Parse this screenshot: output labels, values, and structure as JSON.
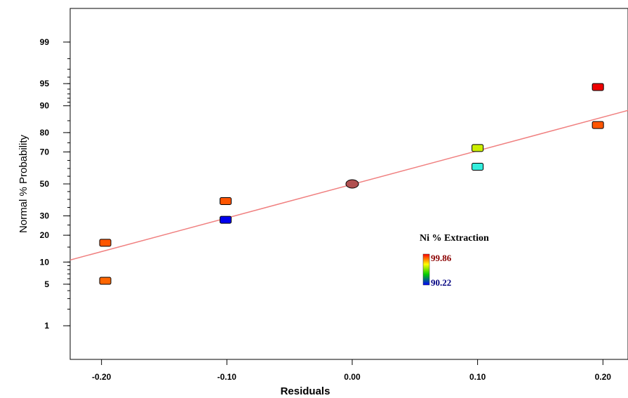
{
  "chart_data": {
    "type": "scatter",
    "title": "",
    "xlabel": "Residuals",
    "ylabel": "Normal % Probability",
    "xlim": [
      -0.225,
      0.22
    ],
    "ylim_percent": [
      0.2,
      99.8
    ],
    "y_scale": "normal-probability",
    "grid": false,
    "x_ticks": [
      {
        "value": -0.2,
        "label": "-0.20"
      },
      {
        "value": -0.1,
        "label": "-0.10"
      },
      {
        "value": 0.0,
        "label": "0.00"
      },
      {
        "value": 0.1,
        "label": "0.10"
      },
      {
        "value": 0.2,
        "label": "0.20"
      }
    ],
    "y_ticks": [
      {
        "value": 1,
        "label": "1"
      },
      {
        "value": 5,
        "label": "5"
      },
      {
        "value": 10,
        "label": "10"
      },
      {
        "value": 20,
        "label": "20"
      },
      {
        "value": 30,
        "label": "30"
      },
      {
        "value": 50,
        "label": "50"
      },
      {
        "value": 70,
        "label": "70"
      },
      {
        "value": 80,
        "label": "80"
      },
      {
        "value": 90,
        "label": "90"
      },
      {
        "value": 95,
        "label": "95"
      },
      {
        "value": 99,
        "label": "99"
      }
    ],
    "points": [
      {
        "x": -0.197,
        "y": 5.6,
        "color": "#ff6600",
        "shape": "square"
      },
      {
        "x": -0.197,
        "y": 16.7,
        "color": "#ff5500",
        "shape": "square"
      },
      {
        "x": -0.101,
        "y": 27.8,
        "color": "#0000ee",
        "shape": "square"
      },
      {
        "x": -0.101,
        "y": 38.9,
        "color": "#ff5500",
        "shape": "square"
      },
      {
        "x": 0.0,
        "y": 50.0,
        "color": "#b05050",
        "shape": "circle"
      },
      {
        "x": 0.1,
        "y": 61.1,
        "color": "#33eedd",
        "shape": "square"
      },
      {
        "x": 0.1,
        "y": 72.2,
        "color": "#ccee00",
        "shape": "square"
      },
      {
        "x": 0.196,
        "y": 83.3,
        "color": "#ff5500",
        "shape": "square"
      },
      {
        "x": 0.196,
        "y": 94.4,
        "color": "#ee0000",
        "shape": "square"
      }
    ],
    "fit_line": {
      "x": [
        -0.225,
        0.22
      ],
      "y": [
        10.6,
        88.6
      ],
      "color": "#f08080"
    },
    "legend": {
      "title": "Ni % Extraction",
      "max_label": "99.86",
      "min_label": "90.22",
      "colors": [
        "#ff0000",
        "#ffff00",
        "#00cc00",
        "#0000ff"
      ]
    }
  }
}
